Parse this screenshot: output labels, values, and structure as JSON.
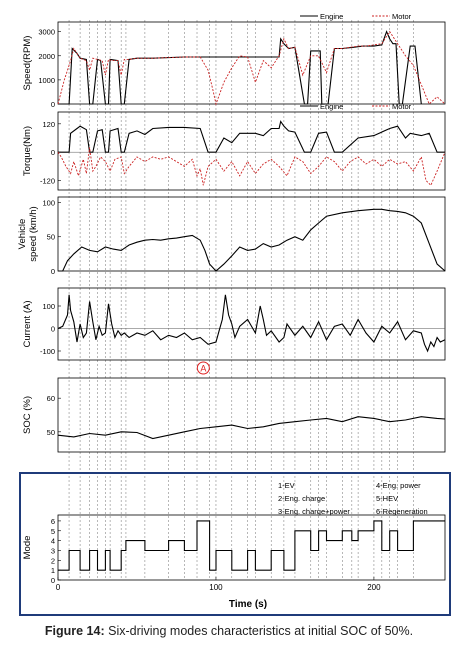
{
  "caption": {
    "label": "Figure 14:",
    "text": " Six-driving modes characteristics at initial SOC of 50%."
  },
  "colors": {
    "engine": "#000000",
    "motor": "#cc2222",
    "frame": "#1f3b7a",
    "annotation": "#dd2222",
    "marker": "#888888"
  },
  "chart_data": [
    {
      "type": "line",
      "ylabel": "Speed(RPM)",
      "yticks": [
        "0",
        "1000",
        "2000",
        "3000"
      ],
      "ylim": [
        0,
        3400
      ],
      "xlim": [
        0,
        245
      ],
      "legend": [
        "Engine",
        "Motor"
      ],
      "legend_position": "top-right",
      "series": [
        {
          "name": "Engine",
          "x": [
            0,
            7,
            9,
            12,
            14,
            18,
            20,
            22,
            25,
            27,
            30,
            32,
            33,
            38,
            40,
            42,
            45,
            50,
            60,
            80,
            100,
            120,
            130,
            133,
            140,
            141,
            143,
            146,
            150,
            156,
            158,
            160,
            166,
            167,
            171,
            175,
            180,
            187,
            193,
            200,
            205,
            208,
            210,
            212,
            214,
            216,
            218,
            223,
            226,
            230
          ],
          "y": [
            0,
            0,
            2300,
            2100,
            1900,
            1850,
            0,
            0,
            1850,
            1800,
            0,
            0,
            1850,
            1800,
            0,
            0,
            1850,
            1900,
            1900,
            1950,
            1950,
            1950,
            1950,
            1950,
            1950,
            2700,
            2500,
            2300,
            2350,
            0,
            0,
            2200,
            2200,
            0,
            0,
            2300,
            2300,
            2350,
            2400,
            2400,
            2450,
            3000,
            2700,
            2500,
            2500,
            0,
            0,
            2400,
            2400,
            0
          ]
        },
        {
          "name": "Motor",
          "x": [
            0,
            2,
            4,
            6,
            8,
            10,
            12,
            14,
            16,
            18,
            20,
            22,
            25,
            28,
            30,
            32,
            34,
            38,
            40,
            42,
            45,
            50,
            60,
            80,
            90,
            95,
            98,
            100,
            105,
            110,
            115,
            120,
            125,
            130,
            135,
            140,
            143,
            146,
            150,
            155,
            160,
            165,
            170,
            175,
            180,
            185,
            190,
            195,
            200,
            205,
            210,
            215,
            220,
            225,
            230,
            235,
            240,
            245
          ],
          "y": [
            0,
            500,
            1000,
            1400,
            1800,
            2300,
            2100,
            1900,
            1850,
            1800,
            1400,
            1900,
            1850,
            1800,
            1200,
            1850,
            1800,
            1800,
            1200,
            1850,
            1850,
            1900,
            1900,
            1950,
            1950,
            1400,
            600,
            0,
            900,
            1500,
            2000,
            1950,
            900,
            1800,
            1500,
            2000,
            2700,
            2300,
            2350,
            1200,
            2000,
            2000,
            1300,
            2300,
            2300,
            2350,
            2400,
            2400,
            2450,
            2500,
            3000,
            2500,
            2000,
            1600,
            800,
            0,
            300,
            0
          ]
        }
      ]
    },
    {
      "type": "line",
      "ylabel": "Torque(Nm)",
      "yticks": [
        "-120",
        "0",
        "120"
      ],
      "ylim": [
        -160,
        170
      ],
      "xlim": [
        0,
        245
      ],
      "legend": [
        "Engine",
        "Motor"
      ],
      "legend_position": "top-right",
      "series": [
        {
          "name": "Engine",
          "x": [
            0,
            7,
            8,
            12,
            14,
            18,
            20,
            22,
            25,
            28,
            30,
            32,
            33,
            38,
            40,
            42,
            45,
            50,
            55,
            60,
            70,
            80,
            90,
            95,
            100,
            105,
            110,
            115,
            120,
            125,
            130,
            135,
            140,
            141,
            143,
            146,
            150,
            156,
            160,
            165,
            170,
            175,
            180,
            190,
            200,
            210,
            215,
            220,
            223,
            230,
            235,
            240,
            245
          ],
          "y": [
            0,
            0,
            80,
            100,
            110,
            95,
            0,
            0,
            90,
            95,
            0,
            0,
            90,
            100,
            0,
            0,
            80,
            90,
            75,
            100,
            105,
            105,
            100,
            0,
            0,
            60,
            40,
            80,
            80,
            80,
            70,
            100,
            100,
            130,
            110,
            90,
            85,
            0,
            0,
            80,
            85,
            0,
            0,
            60,
            70,
            100,
            110,
            60,
            80,
            70,
            80,
            0,
            0
          ]
        },
        {
          "name": "Motor",
          "x": [
            0,
            2,
            5,
            8,
            10,
            13,
            16,
            18,
            20,
            22,
            24,
            27,
            30,
            33,
            36,
            40,
            42,
            45,
            50,
            55,
            60,
            65,
            70,
            75,
            80,
            85,
            88,
            90,
            92,
            95,
            100,
            105,
            110,
            115,
            120,
            125,
            130,
            135,
            140,
            145,
            150,
            155,
            160,
            165,
            170,
            175,
            180,
            185,
            190,
            195,
            200,
            205,
            210,
            215,
            220,
            225,
            230,
            233,
            236,
            240,
            245
          ],
          "y": [
            0,
            -20,
            -60,
            -90,
            -40,
            -100,
            -30,
            -90,
            20,
            -80,
            -60,
            -20,
            -40,
            -80,
            -30,
            -20,
            -90,
            -60,
            -20,
            -40,
            -20,
            -30,
            -20,
            -40,
            -60,
            -30,
            -100,
            -70,
            -140,
            -60,
            -30,
            -80,
            -40,
            -100,
            -40,
            -90,
            -50,
            -30,
            -60,
            -100,
            -20,
            -40,
            -90,
            -60,
            -20,
            -40,
            -80,
            -40,
            -20,
            -50,
            -30,
            -60,
            -30,
            -50,
            -40,
            -80,
            -20,
            -120,
            -140,
            -80,
            0
          ]
        }
      ]
    },
    {
      "type": "line",
      "ylabel": "Vehicle speed (km/h)",
      "yticks": [
        "0",
        "50",
        "100"
      ],
      "ylim": [
        0,
        108
      ],
      "xlim": [
        0,
        245
      ],
      "series": [
        {
          "name": "",
          "x": [
            0,
            3,
            6,
            10,
            15,
            20,
            25,
            30,
            35,
            40,
            45,
            50,
            55,
            60,
            65,
            70,
            75,
            80,
            85,
            90,
            93,
            96,
            100,
            105,
            110,
            115,
            120,
            125,
            130,
            135,
            140,
            145,
            150,
            155,
            160,
            165,
            170,
            180,
            190,
            200,
            205,
            210,
            215,
            220,
            225,
            230,
            235,
            240,
            245
          ],
          "y": [
            0,
            0,
            15,
            25,
            35,
            30,
            28,
            35,
            32,
            30,
            38,
            42,
            45,
            46,
            45,
            47,
            48,
            50,
            52,
            45,
            30,
            10,
            0,
            10,
            22,
            35,
            30,
            32,
            40,
            35,
            38,
            45,
            50,
            45,
            60,
            70,
            80,
            85,
            88,
            90,
            90,
            88,
            87,
            85,
            80,
            70,
            40,
            10,
            0
          ]
        }
      ]
    },
    {
      "type": "line",
      "ylabel": "Current (A)",
      "yticks": [
        "-100",
        "0",
        "100"
      ],
      "ylim": [
        -140,
        180
      ],
      "xlim": [
        0,
        245
      ],
      "series": [
        {
          "name": "",
          "x": [
            0,
            3,
            6,
            7,
            8,
            10,
            12,
            14,
            16,
            18,
            20,
            22,
            24,
            26,
            28,
            30,
            32,
            34,
            36,
            38,
            40,
            42,
            45,
            50,
            55,
            60,
            65,
            70,
            75,
            80,
            85,
            90,
            95,
            100,
            102,
            104,
            106,
            108,
            110,
            112,
            115,
            120,
            125,
            128,
            130,
            132,
            135,
            140,
            143,
            145,
            150,
            155,
            160,
            165,
            170,
            175,
            180,
            185,
            190,
            195,
            200,
            205,
            210,
            215,
            220,
            225,
            230,
            232,
            234,
            236,
            238,
            240,
            242,
            245
          ],
          "y": [
            0,
            10,
            60,
            150,
            80,
            30,
            -60,
            20,
            -40,
            -20,
            120,
            30,
            -50,
            10,
            -30,
            -20,
            110,
            20,
            -40,
            -10,
            -30,
            -20,
            -40,
            -20,
            -30,
            -10,
            -50,
            -30,
            -40,
            -20,
            -50,
            -40,
            -70,
            -60,
            -10,
            40,
            150,
            60,
            20,
            -40,
            10,
            40,
            -20,
            100,
            40,
            -30,
            -10,
            -60,
            -40,
            20,
            -30,
            10,
            -40,
            30,
            -50,
            10,
            20,
            -30,
            40,
            -20,
            -60,
            10,
            -20,
            30,
            -50,
            -10,
            -20,
            -70,
            -100,
            -60,
            -80,
            -40,
            -60,
            -50
          ]
        }
      ]
    },
    {
      "type": "line",
      "ylabel": "SOC (%)",
      "yticks": [
        "50",
        "60"
      ],
      "ylim": [
        44,
        66
      ],
      "xlim": [
        0,
        245
      ],
      "series": [
        {
          "name": "",
          "x": [
            0,
            10,
            20,
            30,
            40,
            50,
            60,
            70,
            80,
            90,
            100,
            110,
            120,
            130,
            140,
            150,
            160,
            170,
            180,
            190,
            200,
            210,
            220,
            230,
            240,
            245
          ],
          "y": [
            49,
            48.5,
            49.5,
            49,
            50,
            49.8,
            48,
            49,
            50,
            51,
            51.5,
            52,
            51,
            51.5,
            52.5,
            53,
            53.5,
            54,
            53,
            54.5,
            54,
            53,
            53.5,
            54.5,
            54,
            53.8
          ]
        }
      ]
    },
    {
      "type": "line",
      "ylabel": "Mode",
      "yticks": [
        "0",
        "1",
        "2",
        "3",
        "4",
        "5",
        "6"
      ],
      "ylim": [
        0,
        6.6
      ],
      "xlim": [
        0,
        245
      ],
      "xlabel": "Time (s)",
      "xticks": [
        "0",
        "100",
        "200"
      ],
      "legend": [
        "1-EV",
        "2-Eng. charge",
        "3-Eng. charge+power",
        "4-Eng. power",
        "5-HEV",
        "6-Regeneration"
      ],
      "series": [
        {
          "name": "",
          "x": [
            0,
            7,
            7,
            14,
            14,
            20,
            20,
            25,
            25,
            30,
            30,
            33,
            33,
            40,
            40,
            43,
            43,
            55,
            55,
            70,
            70,
            80,
            80,
            88,
            88,
            96,
            96,
            100,
            100,
            110,
            110,
            120,
            120,
            125,
            125,
            135,
            135,
            143,
            143,
            150,
            150,
            160,
            160,
            165,
            165,
            170,
            170,
            180,
            180,
            186,
            186,
            190,
            190,
            200,
            200,
            205,
            205,
            210,
            210,
            215,
            215,
            225,
            225,
            245
          ],
          "y": [
            1,
            1,
            3,
            3,
            1,
            1,
            3,
            3,
            1,
            1,
            3,
            3,
            1,
            1,
            3,
            3,
            4,
            4,
            3,
            3,
            4,
            4,
            3,
            3,
            6,
            6,
            1,
            1,
            3,
            3,
            1,
            1,
            3,
            3,
            1,
            1,
            3,
            3,
            1,
            1,
            5,
            5,
            3,
            3,
            5,
            5,
            4,
            4,
            5,
            5,
            4,
            4,
            5,
            5,
            6,
            6,
            3,
            3,
            5,
            5,
            3,
            3,
            6,
            6
          ]
        }
      ]
    }
  ],
  "annotation": {
    "label": "A",
    "x": 92
  },
  "mode_markers": [
    7,
    14,
    20,
    25,
    30,
    33,
    40,
    43,
    55,
    70,
    80,
    88,
    96,
    100,
    110,
    120,
    125,
    135,
    143,
    150,
    160,
    165,
    170,
    180,
    186,
    190,
    200,
    205,
    210,
    215,
    225
  ]
}
